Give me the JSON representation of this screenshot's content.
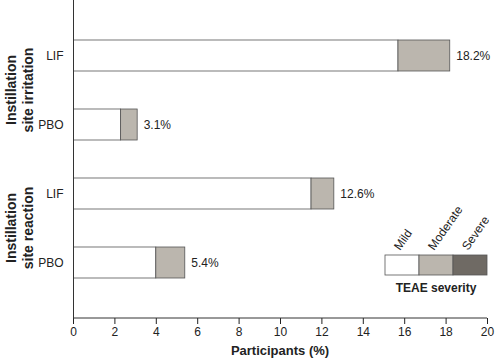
{
  "chart_data": {
    "type": "bar",
    "orientation": "horizontal",
    "stacked": true,
    "categories": [
      "LIF",
      "PBO",
      "LIF",
      "PBO"
    ],
    "category_groups": [
      "Instillation site irritation",
      "Instillation site irritation",
      "Instillation site reaction",
      "Instillation site reaction"
    ],
    "series": [
      {
        "name": "Mild",
        "color": "#ffffff",
        "values": [
          15.7,
          2.3,
          11.5,
          4.0
        ]
      },
      {
        "name": "Moderate",
        "color": "#bbb6ae",
        "values": [
          2.5,
          0.8,
          1.1,
          1.4
        ]
      },
      {
        "name": "Severe",
        "color": "#6f6a64",
        "values": [
          0,
          0,
          0,
          0
        ]
      }
    ],
    "totals": [
      18.2,
      3.1,
      12.6,
      5.4
    ],
    "total_labels": [
      "18.2%",
      "3.1%",
      "12.6%",
      "5.4%"
    ],
    "data_labels": true,
    "xlabel": "Participants (%)",
    "xlim": [
      0,
      20
    ],
    "xticks": [
      0,
      2,
      4,
      6,
      8,
      10,
      12,
      14,
      16,
      18,
      20
    ],
    "legend": "bottom-right",
    "legend_title": "TEAE severity",
    "grid": false
  }
}
